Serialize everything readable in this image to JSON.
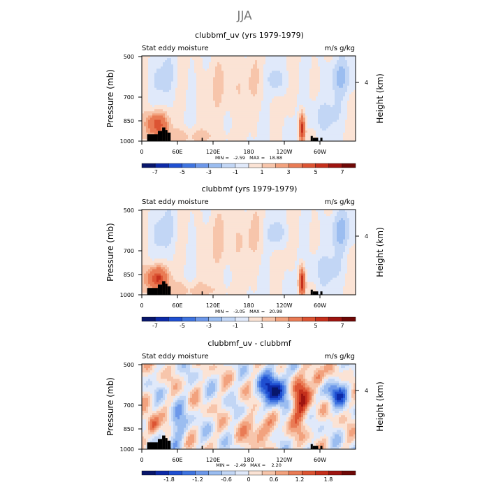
{
  "figure": {
    "title": "JJA"
  },
  "panels": [
    {
      "title": "clubbmf_uv (yrs 1979-1979)",
      "left_label": "Stat eddy moisture",
      "right_label": "m/s g/kg",
      "minmax": "MIN =   -2.59   MAX =   18.88",
      "colorbar_ticks": [
        "-7",
        "-5",
        "-3",
        "-1",
        "1",
        "3",
        "5",
        "7"
      ]
    },
    {
      "title": "clubbmf (yrs 1979-1979)",
      "left_label": "Stat eddy moisture",
      "right_label": "m/s g/kg",
      "minmax": "MIN =   -3.05   MAX =   20.98",
      "colorbar_ticks": [
        "-7",
        "-5",
        "-3",
        "-1",
        "1",
        "3",
        "5",
        "7"
      ]
    },
    {
      "title": "clubbmf_uv - clubbmf",
      "left_label": "Stat eddy moisture",
      "right_label": "m/s g/kg",
      "minmax": "MIN =   -2.49   MAX =    2.20",
      "colorbar_ticks": [
        "-1.8",
        "-1.2",
        "-0.6",
        "0",
        "0.6",
        "1.2",
        "1.8"
      ]
    }
  ],
  "chart_data": [
    {
      "type": "heatmap",
      "title": "clubbmf_uv (yrs 1979-1979)",
      "subtitle": "Stat eddy moisture",
      "units": "m/s g/kg",
      "xlabel": "",
      "ylabel": "Pressure (mb)",
      "ylabel_right": "Height (km)",
      "xlim": [
        0,
        360
      ],
      "ylim": [
        1000,
        500
      ],
      "x_ticks": [
        "0",
        "60E",
        "120E",
        "180",
        "120W",
        "60W"
      ],
      "y_ticks": [
        "500",
        "700",
        "850",
        "1000"
      ],
      "y_right_ticks": [
        "4"
      ],
      "min": -2.59,
      "max": 18.88,
      "levels": [
        -8,
        -7,
        -6,
        -5,
        -4,
        -3,
        -2,
        -1,
        0,
        1,
        2,
        3,
        4,
        5,
        6,
        7,
        8
      ]
    },
    {
      "type": "heatmap",
      "title": "clubbmf (yrs 1979-1979)",
      "subtitle": "Stat eddy moisture",
      "units": "m/s g/kg",
      "xlabel": "",
      "ylabel": "Pressure (mb)",
      "ylabel_right": "Height (km)",
      "xlim": [
        0,
        360
      ],
      "ylim": [
        1000,
        500
      ],
      "x_ticks": [
        "0",
        "60E",
        "120E",
        "180",
        "120W",
        "60W"
      ],
      "y_ticks": [
        "500",
        "700",
        "850",
        "1000"
      ],
      "y_right_ticks": [
        "4"
      ],
      "min": -3.05,
      "max": 20.98,
      "levels": [
        -8,
        -7,
        -6,
        -5,
        -4,
        -3,
        -2,
        -1,
        0,
        1,
        2,
        3,
        4,
        5,
        6,
        7,
        8
      ]
    },
    {
      "type": "heatmap",
      "title": "clubbmf_uv - clubbmf",
      "subtitle": "Stat eddy moisture",
      "units": "m/s g/kg",
      "xlabel": "",
      "ylabel": "Pressure (mb)",
      "ylabel_right": "Height (km)",
      "xlim": [
        0,
        360
      ],
      "ylim": [
        1000,
        500
      ],
      "x_ticks": [
        "0",
        "60E",
        "120E",
        "180",
        "120W",
        "60W"
      ],
      "y_ticks": [
        "500",
        "700",
        "850",
        "1000"
      ],
      "y_right_ticks": [
        "4"
      ],
      "min": -2.49,
      "max": 2.2,
      "levels": [
        -2.1,
        -1.8,
        -1.5,
        -1.2,
        -0.9,
        -0.6,
        -0.3,
        0,
        0.3,
        0.6,
        0.9,
        1.2,
        1.5,
        1.8,
        2.1
      ]
    }
  ],
  "colors": {
    "palette": [
      "#08166b",
      "#0d2aa8",
      "#1f4fd1",
      "#3f74e0",
      "#6d98ea",
      "#9bbdf0",
      "#c2d6f5",
      "#e0e9fa",
      "#fbe3d5",
      "#f7c5ab",
      "#f2a27e",
      "#e97b55",
      "#dc5433",
      "#c5301c",
      "#9e1410",
      "#6e0806"
    ],
    "terrain": "#000000"
  }
}
